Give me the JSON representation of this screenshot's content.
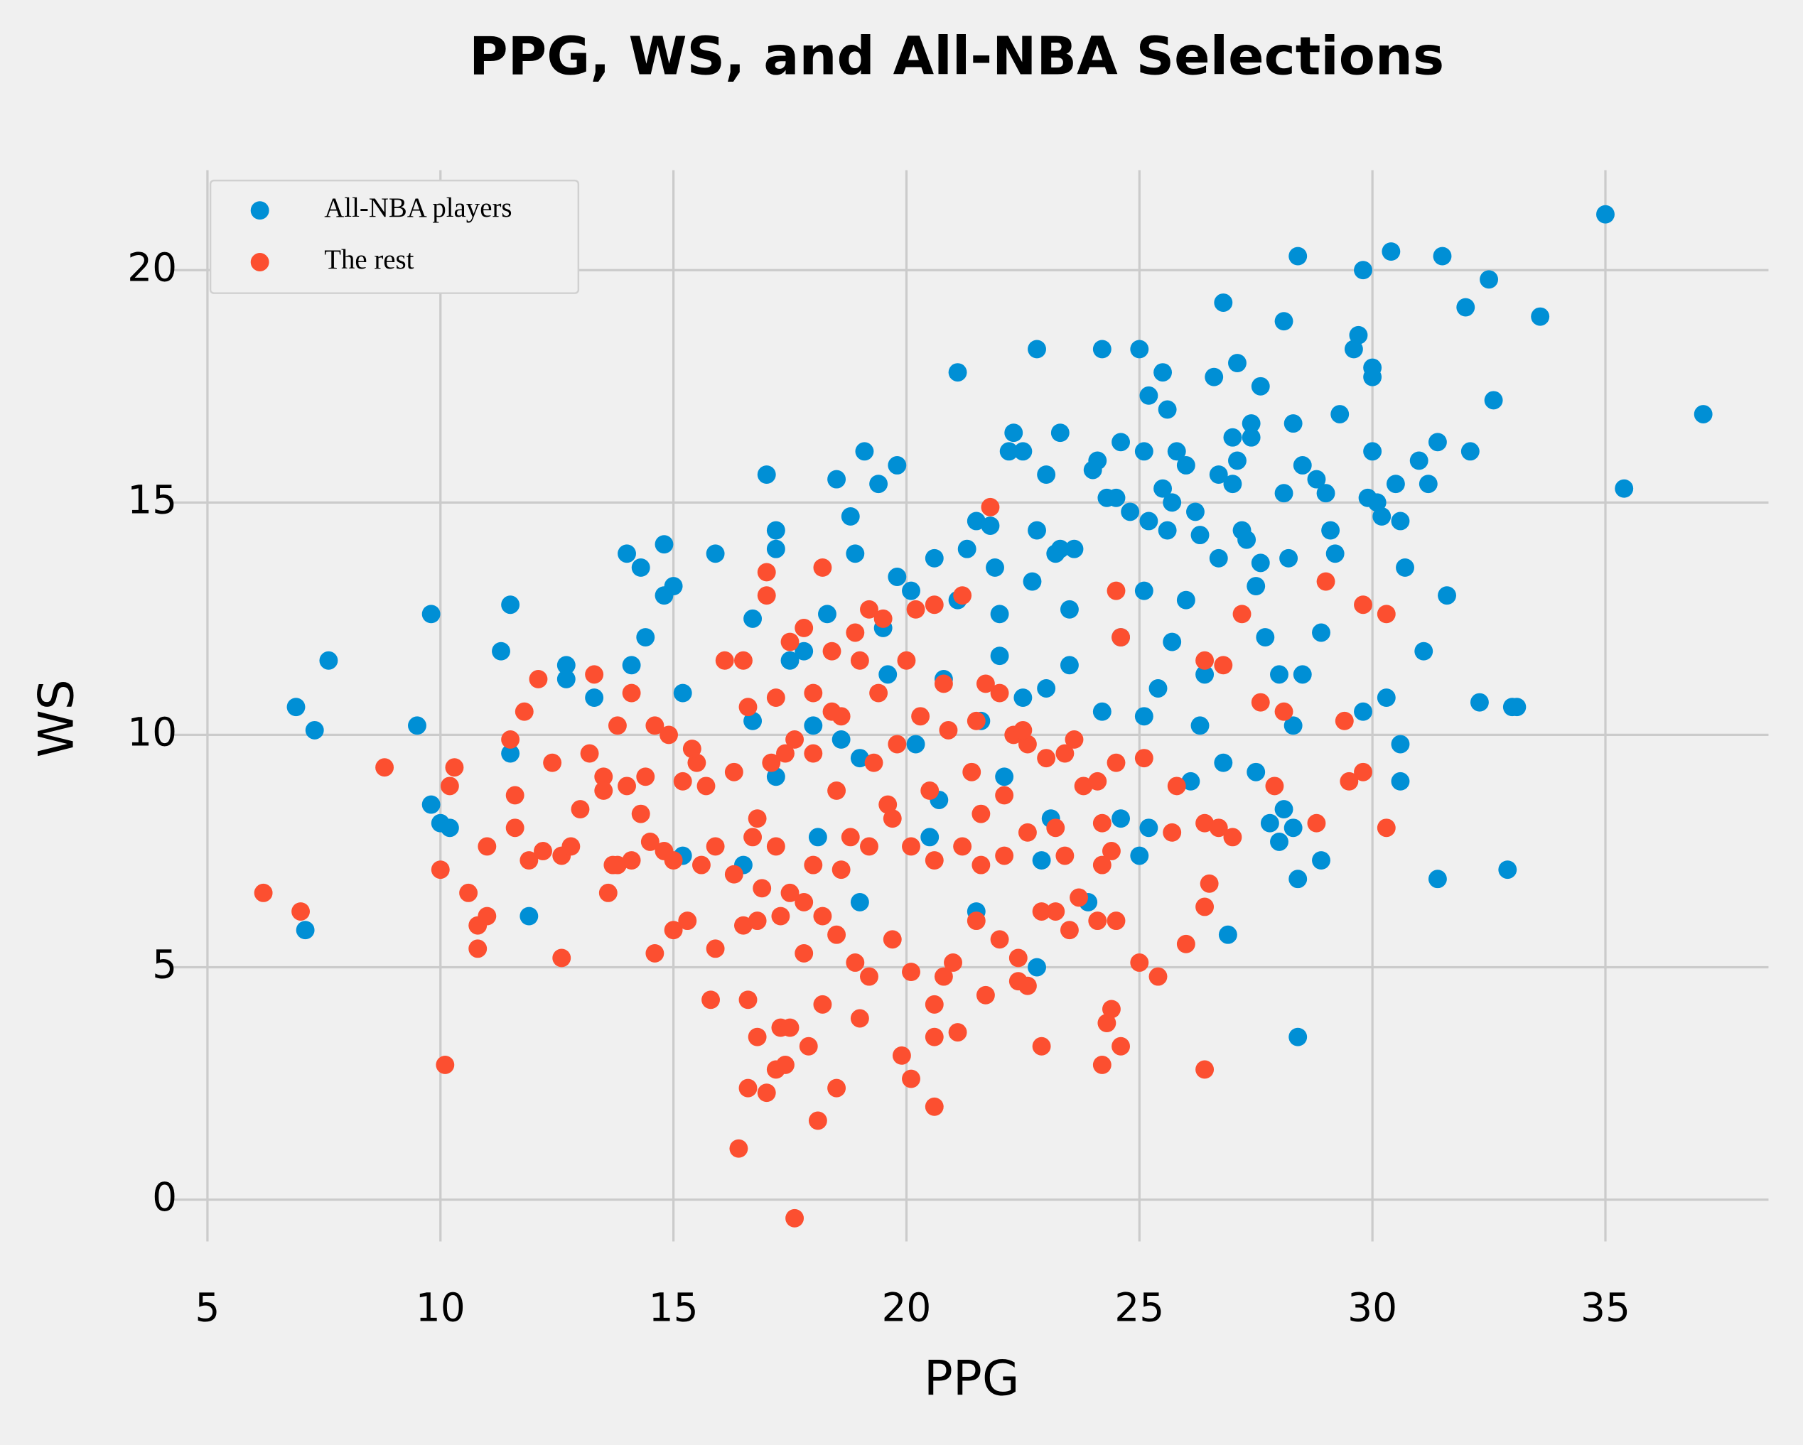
{
  "chart_data": {
    "type": "scatter",
    "title": "PPG, WS, and All-NBA Selections",
    "x_label": "PPG",
    "y_label": "WS",
    "xlim": [
      4.2,
      38.5
    ],
    "ylim": [
      -0.9,
      22.15
    ],
    "xticks": [
      5,
      10,
      15,
      20,
      25,
      30,
      35
    ],
    "yticks": [
      0,
      5,
      10,
      15,
      20
    ],
    "grid": true,
    "legend": "upper left",
    "series": [
      {
        "name": "All-NBA players",
        "color": "#008fd5",
        "x": [
          35,
          37.1,
          35.4,
          28.4,
          30.4,
          31.5,
          29.8,
          32.5,
          32,
          33.6,
          26.8,
          28.1,
          29.7,
          29.6,
          22.8,
          24.2,
          25,
          27.1,
          30,
          30,
          25.5,
          21.1,
          26.6,
          27.6,
          25.2,
          32.6,
          25.6,
          29.3,
          28.3,
          27.4,
          22.3,
          23.3,
          27,
          27.4,
          24.6,
          31.4,
          19.1,
          22.2,
          22.5,
          25.1,
          25.8,
          30,
          32.1,
          31,
          27.1,
          24.1,
          26,
          19.8,
          28.5,
          24,
          23,
          17,
          26.7,
          18.5,
          19.4,
          27,
          28.8,
          30.5,
          31.2,
          25.5,
          29,
          28.1,
          29.9,
          24.3,
          24.5,
          30.1,
          25.7,
          26.2,
          24.8,
          30.2,
          18.8,
          25.2,
          21.5,
          30.6,
          21.8,
          22.8,
          25.6,
          29.1,
          17.2,
          27.2,
          26.3,
          27.3,
          14.8,
          21.3,
          23.6,
          23.3,
          17.2,
          14,
          15.9,
          18.9,
          29.2,
          23.2,
          28.2,
          20.6,
          26.7,
          27.6,
          14.3,
          30.7,
          21.9,
          20.1,
          15,
          19.8,
          22.7,
          25.1,
          31.6,
          14.8,
          11.5,
          9.8,
          16.7,
          22,
          28.9,
          17.5,
          7.6,
          11.3,
          31.1,
          14.4,
          12.7,
          12.7,
          14.1,
          13.3,
          15.2,
          6.9,
          7.3,
          9.5,
          32.3,
          33,
          33.1,
          30.3,
          29.8,
          30.6,
          30.6,
          27.5,
          26.8,
          9.8,
          10,
          10.2,
          11.5,
          11.9,
          7.1,
          31.4,
          32.9,
          28.9,
          28.4,
          28.4,
          26.9,
          22.8,
          25,
          28,
          28.3,
          28.1,
          27.8,
          17.2,
          18,
          19,
          20.2,
          21.6,
          22.5,
          23,
          20.8,
          22,
          23.5,
          24.2,
          25.4,
          25.7,
          26.4,
          19.5,
          18.3,
          17.8,
          19.6,
          21.1,
          23.5,
          24.6,
          26,
          27.7,
          16.7,
          18.6,
          20.7,
          22.1,
          23.1,
          24.6,
          25.2,
          26.1,
          22.9,
          23.9,
          21.5,
          19,
          16.5,
          15.2,
          20.5,
          18.1,
          27.5,
          28,
          28.5,
          28.3,
          26.3,
          25.1
        ],
        "values": [
          21.2,
          16.9,
          15.3,
          20.3,
          20.4,
          20.3,
          20,
          19.8,
          19.2,
          19,
          19.3,
          18.9,
          18.6,
          18.3,
          18.3,
          18.3,
          18.3,
          18,
          17.9,
          17.7,
          17.8,
          17.8,
          17.7,
          17.5,
          17.3,
          17.2,
          17,
          16.9,
          16.7,
          16.7,
          16.5,
          16.5,
          16.4,
          16.4,
          16.3,
          16.3,
          16.1,
          16.1,
          16.1,
          16.1,
          16.1,
          16.1,
          16.1,
          15.9,
          15.9,
          15.9,
          15.8,
          15.8,
          15.8,
          15.7,
          15.6,
          15.6,
          15.6,
          15.5,
          15.4,
          15.4,
          15.5,
          15.4,
          15.4,
          15.3,
          15.2,
          15.2,
          15.1,
          15.1,
          15.1,
          15,
          15,
          14.8,
          14.8,
          14.7,
          14.7,
          14.6,
          14.6,
          14.6,
          14.5,
          14.4,
          14.4,
          14.4,
          14.4,
          14.4,
          14.3,
          14.2,
          14.1,
          14,
          14,
          14,
          14,
          13.9,
          13.9,
          13.9,
          13.9,
          13.9,
          13.8,
          13.8,
          13.8,
          13.7,
          13.6,
          13.6,
          13.6,
          13.1,
          13.2,
          13.4,
          13.3,
          13.1,
          13,
          13,
          12.8,
          12.6,
          12.5,
          12.6,
          12.2,
          11.6,
          11.6,
          11.8,
          11.8,
          12.1,
          11.5,
          11.2,
          11.5,
          10.8,
          10.9,
          10.6,
          10.1,
          10.2,
          10.7,
          10.6,
          10.6,
          10.8,
          10.5,
          9.8,
          9,
          9.2,
          9.4,
          8.5,
          8.1,
          8,
          9.6,
          6.1,
          5.8,
          6.9,
          7.1,
          7.3,
          6.9,
          3.5,
          5.7,
          5,
          7.4,
          7.7,
          8,
          8.4,
          8.1,
          9.1,
          10.2,
          9.5,
          9.8,
          10.3,
          10.8,
          11,
          11.2,
          11.7,
          11.5,
          10.5,
          11,
          12,
          11.3,
          12.3,
          12.6,
          11.8,
          11.3,
          12.9,
          12.7,
          12.1,
          12.9,
          12.1,
          10.3,
          9.9,
          8.6,
          9.1,
          8.2,
          8.2,
          8,
          9,
          7.3,
          6.4,
          6.2,
          6.4,
          7.2,
          7.4,
          7.8,
          7.8,
          13.2,
          11.3,
          11.3,
          10.2,
          10.2,
          10.4
        ]
      },
      {
        "name": "The rest",
        "color": "#fc4f30",
        "x": [
          17.6,
          16.4,
          18.1,
          20.6,
          16.6,
          17,
          18.5,
          20.1,
          10.1,
          17.4,
          17.2,
          26.4,
          24.2,
          19.9,
          17.9,
          22.9,
          24.6,
          16.8,
          20.6,
          21.1,
          17.3,
          17.5,
          24.3,
          24.4,
          19,
          18.2,
          20.6,
          21.7,
          16.6,
          15.8,
          22.4,
          22.6,
          25.4,
          25,
          12.6,
          10.8,
          15.9,
          14.6,
          17.8,
          26,
          6.2,
          7,
          10.6,
          10.8,
          11,
          8.8,
          10.3,
          10.2,
          10,
          11,
          11.6,
          11.6,
          11.9,
          12.2,
          11.5,
          11.8,
          12.1,
          12.4,
          12.6,
          12.8,
          13,
          13.2,
          13.3,
          13.5,
          13.5,
          13.7,
          13.8,
          14,
          14.1,
          14.3,
          14.4,
          14.6,
          14.8,
          15,
          15.2,
          15.5,
          15.3,
          15.7,
          15.9,
          16.1,
          16.3,
          16.5,
          16.6,
          16.8,
          17,
          17,
          17.2,
          17.4,
          17.5,
          17.8,
          18,
          18.2,
          18.4,
          18.6,
          18.9,
          19,
          19.2,
          19.5,
          20,
          20.2,
          20.6,
          21.2,
          21.8,
          22,
          21.5,
          22.3,
          22.6,
          23,
          23.4,
          23.8,
          24.1,
          24.5,
          24.5,
          24.6,
          25.1,
          25.8,
          25.7,
          26.4,
          26.7,
          27,
          26.5,
          26.4,
          26.4,
          26.8,
          27.2,
          27.6,
          28.1,
          27.9,
          28.8,
          29,
          29.4,
          29.5,
          29.8,
          29.8,
          30.3,
          30.3,
          24.2,
          24.4,
          24.2,
          24.5,
          24.1,
          23.7,
          23.5,
          23.2,
          22.9,
          22.4,
          22,
          21.5,
          21,
          20.8,
          20.1,
          19.7,
          19.2,
          18.9,
          18.5,
          18.2,
          17.8,
          17.3,
          16.8,
          16.3,
          16.5,
          16.9,
          17.5,
          18,
          18.6,
          19.2,
          19.7,
          20.1,
          20.6,
          21.2,
          21.6,
          22.1,
          22.6,
          23.2,
          23.4,
          18.8,
          18.5,
          19.3,
          19.8,
          20.3,
          20.9,
          21.4,
          22.1,
          21.6,
          20.5,
          19.6,
          18,
          17.6,
          17.2,
          16.7,
          15.6,
          15,
          14.5,
          14.1,
          13.8,
          13.6,
          14.9,
          15.4,
          17.1,
          18.4,
          19.4,
          20.8,
          21.7,
          22.5,
          23.6
        ],
        "values": [
          -0.4,
          1.1,
          1.7,
          2,
          2.4,
          2.3,
          2.4,
          2.6,
          2.9,
          2.9,
          2.8,
          2.8,
          2.9,
          3.1,
          3.3,
          3.3,
          3.3,
          3.5,
          3.5,
          3.6,
          3.7,
          3.7,
          3.8,
          4.1,
          3.9,
          4.2,
          4.2,
          4.4,
          4.3,
          4.3,
          4.7,
          4.6,
          4.8,
          5.1,
          5.2,
          5.4,
          5.4,
          5.3,
          5.3,
          5.5,
          6.6,
          6.2,
          6.6,
          5.9,
          6.1,
          9.3,
          9.3,
          8.9,
          7.1,
          7.6,
          8,
          8.7,
          7.3,
          7.5,
          9.9,
          10.5,
          11.2,
          9.4,
          7.4,
          7.6,
          8.4,
          9.6,
          11.3,
          9.1,
          8.8,
          7.2,
          10.2,
          8.9,
          10.9,
          8.3,
          9.1,
          10.2,
          7.5,
          5.8,
          9,
          9.4,
          6,
          8.9,
          7.6,
          11.6,
          9.2,
          11.6,
          10.6,
          8.2,
          13.5,
          13,
          10.8,
          9.6,
          12,
          12.3,
          10.9,
          13.6,
          11.8,
          10.4,
          12.2,
          11.6,
          12.7,
          12.5,
          11.6,
          12.7,
          12.8,
          13,
          14.9,
          10.9,
          10.3,
          10,
          9.8,
          9.5,
          9.6,
          8.9,
          9,
          9.4,
          13.1,
          12.1,
          9.5,
          8.9,
          7.9,
          8.1,
          8,
          7.8,
          6.8,
          6.3,
          11.6,
          11.5,
          12.6,
          10.7,
          10.5,
          8.9,
          8.1,
          13.3,
          10.3,
          9,
          9.2,
          12.8,
          12.6,
          8,
          8.1,
          7.5,
          7.2,
          6,
          6,
          6.5,
          5.8,
          6.2,
          6.2,
          5.2,
          5.6,
          6,
          5.1,
          4.8,
          4.9,
          5.6,
          4.8,
          5.1,
          5.7,
          6.1,
          6.4,
          6.1,
          6,
          7,
          5.9,
          6.7,
          6.6,
          7.2,
          7.1,
          7.6,
          8.2,
          7.6,
          7.3,
          7.6,
          7.2,
          7.4,
          7.9,
          8,
          7.4,
          7.8,
          8.8,
          9.4,
          9.8,
          10.4,
          10.1,
          9.2,
          8.7,
          8.3,
          8.8,
          8.5,
          9.6,
          9.9,
          7.6,
          7.8,
          7.2,
          7.3,
          7.7,
          7.3,
          7.2,
          6.6,
          10,
          9.7,
          9.4,
          10.5,
          10.9,
          11.1,
          11.1,
          10.1,
          9.9
        ]
      }
    ]
  }
}
